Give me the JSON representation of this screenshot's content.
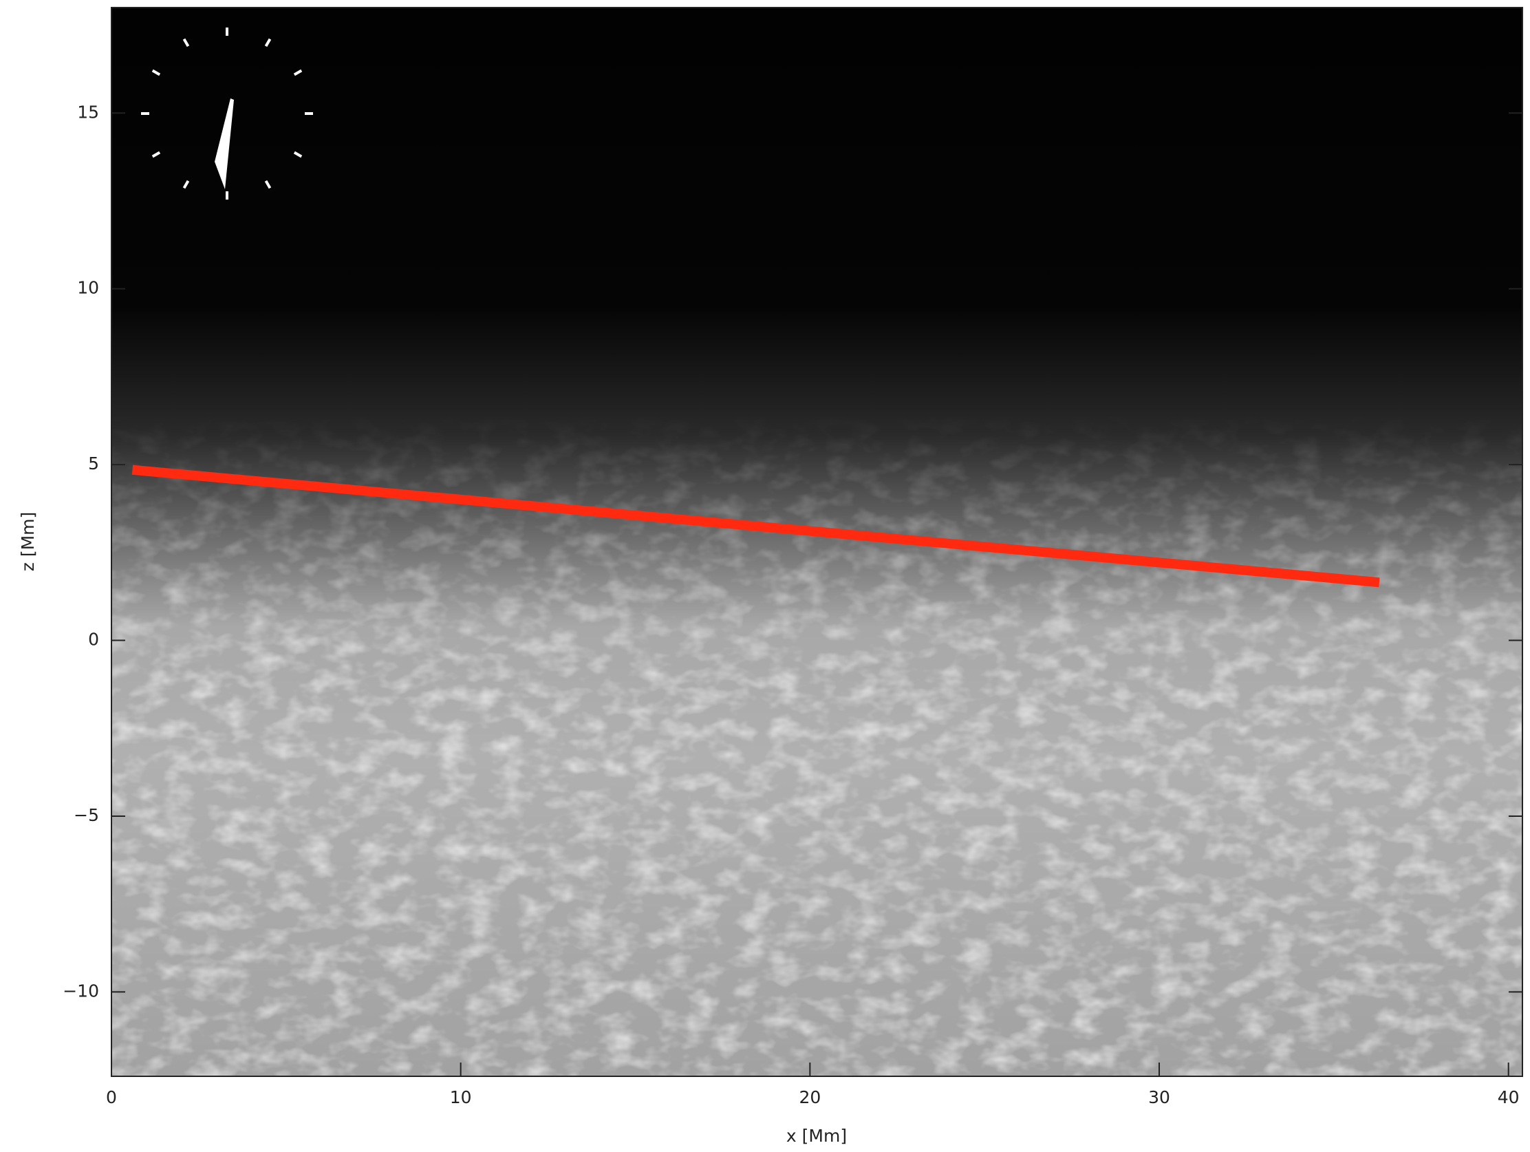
{
  "chart_data": {
    "type": "line",
    "x": [
      0.6,
      36.3
    ],
    "values": [
      4.85,
      1.65
    ],
    "color": "#ff2a10",
    "xlabel": "x [Mm]",
    "ylabel": "z [Mm]",
    "xlim": [
      0,
      40.4
    ],
    "ylim": [
      -12.4,
      18
    ],
    "xticks": [
      0,
      10,
      20,
      30,
      40
    ],
    "yticks": [
      {
        "value": -10,
        "label": "−10"
      },
      {
        "value": -5,
        "label": "−5"
      },
      0,
      5,
      10,
      15
    ]
  }
}
